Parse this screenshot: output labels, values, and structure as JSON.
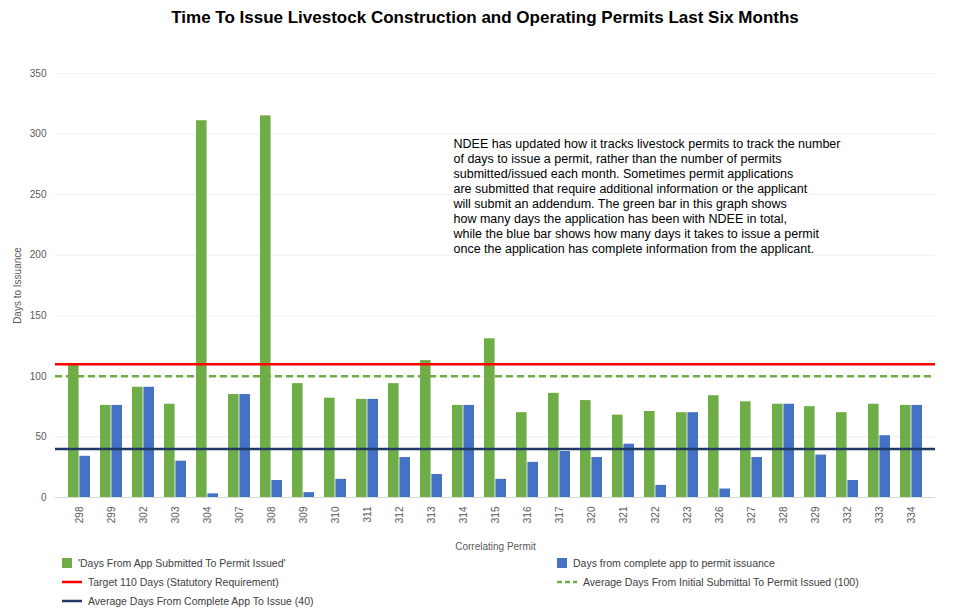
{
  "chart_data": {
    "type": "bar",
    "title": "Time To Issue Livestock Construction and Operating Permits Last Six Months",
    "x_label": "Correlating Permit",
    "y_label": "Days to Issuance",
    "categories": [
      "298",
      "299",
      "302",
      "303",
      "304",
      "307",
      "308",
      "309",
      "310",
      "311",
      "312",
      "313",
      "314",
      "315",
      "316",
      "317",
      "320",
      "321",
      "322",
      "323",
      "326",
      "327",
      "328",
      "329",
      "332",
      "333",
      "334"
    ],
    "series": [
      {
        "name": "'Days From App Submitted To Permit Issued'",
        "color": "#70ad47",
        "values": [
          109,
          76,
          91,
          77,
          311,
          85,
          315,
          94,
          82,
          81,
          94,
          113,
          76,
          131,
          70,
          86,
          80,
          68,
          71,
          70,
          84,
          79,
          77,
          75,
          70,
          77,
          76
        ]
      },
      {
        "name": "Days from complete app to permit issuance",
        "color": "#4472c4",
        "values": [
          34,
          76,
          91,
          30,
          3,
          85,
          14,
          4,
          15,
          81,
          33,
          19,
          76,
          15,
          29,
          38,
          33,
          44,
          10,
          70,
          7,
          33,
          77,
          35,
          14,
          51,
          76
        ]
      }
    ],
    "reference_lines": [
      {
        "name": "Target 110 Days (Statutory Requirement)",
        "value": 110,
        "color": "#ff0000",
        "line_style": "solid"
      },
      {
        "name": "Average Days From Initial Submittal To Permit Issued (100)",
        "value": 100,
        "color": "#70ad47",
        "line_style": "dashed"
      },
      {
        "name": "Average Days From Complete App To Issue (40)",
        "value": 40,
        "color": "#1f3864",
        "line_style": "solid"
      }
    ],
    "annotation": [
      "NDEE has updated how it tracks livestock permits to track the number",
      "of days to issue a permit, rather than the number of permits",
      "submitted/issued each month. Sometimes permit applications",
      "are submitted that require additional information or the applicant",
      "will submit an addendum. The green bar in this graph shows",
      "how many days the application has been with NDEE in total,",
      "while the blue bar shows how many days it takes to issue a permit",
      "once the application has complete information from the applicant."
    ],
    "ylim": [
      0,
      350
    ],
    "yticks": [
      0,
      50,
      100,
      150,
      200,
      250,
      300,
      350
    ],
    "grid": true,
    "legend": "bottom"
  }
}
